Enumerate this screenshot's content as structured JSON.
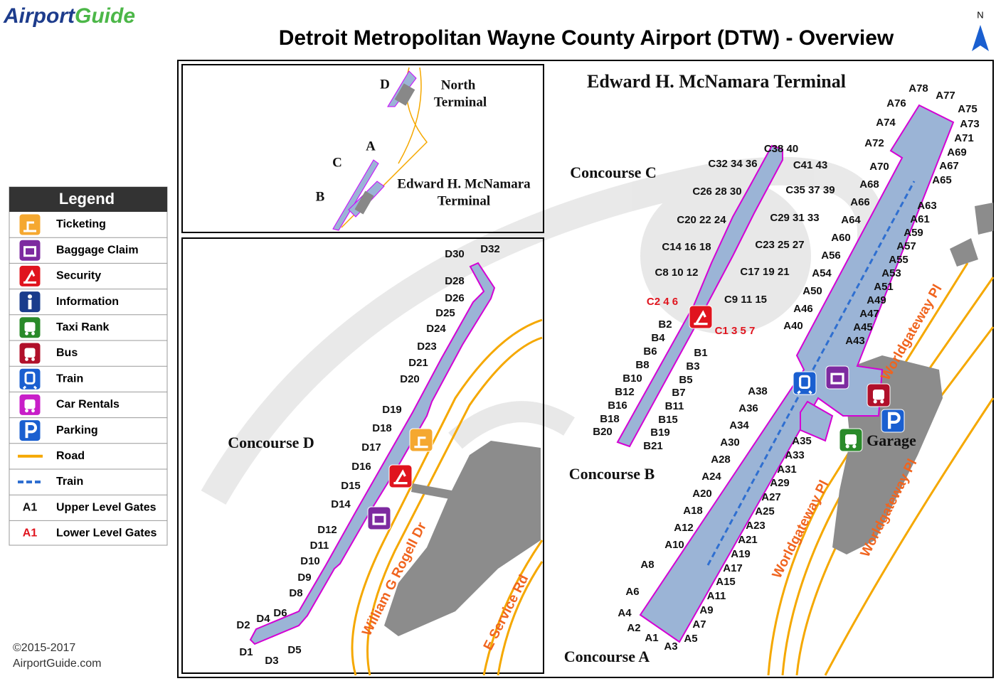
{
  "header": {
    "logo": [
      "Airport",
      "Guide"
    ],
    "title": "Detroit Metropolitan Wayne County Airport (DTW) - Overview",
    "north": "N"
  },
  "legend": {
    "title": "Legend",
    "items": [
      {
        "label": "Ticketing"
      },
      {
        "label": "Baggage Claim"
      },
      {
        "label": "Security"
      },
      {
        "label": "Information"
      },
      {
        "label": "Taxi Rank"
      },
      {
        "label": "Bus"
      },
      {
        "label": "Train"
      },
      {
        "label": "Car Rentals"
      },
      {
        "label": "Parking"
      },
      {
        "label": "Road"
      },
      {
        "label": "Train"
      },
      {
        "sample": "A1",
        "label": "Upper Level Gates"
      },
      {
        "sample": "A1",
        "label": "Lower Level Gates"
      }
    ]
  },
  "overview": {
    "labels": [
      "D",
      "North",
      "Terminal",
      "A",
      "C",
      "B",
      "Edward H. McNamara",
      "Terminal"
    ]
  },
  "map": {
    "terminal_title": "Edward H. McNamara Terminal",
    "concourses": [
      "Concourse D",
      "Concourse C",
      "Concourse B",
      "Concourse A"
    ],
    "gates_d": [
      "D30",
      "D32",
      "D28",
      "D26",
      "D25",
      "D24",
      "D23",
      "D21",
      "D20",
      "D19",
      "D18",
      "D17",
      "D16",
      "D15",
      "D14",
      "D12",
      "D11",
      "D10",
      "D9",
      "D8",
      "D6",
      "D4",
      "D2",
      "D1",
      "D3",
      "D5"
    ],
    "gates_c": [
      "C38 40",
      "C32 34 36",
      "C41 43",
      "C26 28 30",
      "C35 37 39",
      "C20 22 24",
      "C29 31 33",
      "C14 16 18",
      "C23 25 27",
      "C8 10 12",
      "C17 19 21",
      "C9 11 15"
    ],
    "gates_lower": [
      "C2 4 6",
      "C1 3 5 7"
    ],
    "gates_b": [
      "B2",
      "B4",
      "B6",
      "B8",
      "B10",
      "B12",
      "B16",
      "B18",
      "B20",
      "B1",
      "B3",
      "B5",
      "B7",
      "B11",
      "B15",
      "B19",
      "B21"
    ],
    "gates_a": [
      "A38",
      "A36",
      "A34",
      "A30",
      "A28",
      "A24",
      "A20",
      "A18",
      "A12",
      "A10",
      "A8",
      "A6",
      "A4",
      "A2",
      "A1",
      "A3",
      "A5",
      "A7",
      "A9",
      "A11",
      "A15",
      "A17",
      "A19",
      "A21",
      "A23",
      "A25",
      "A27",
      "A29",
      "A31",
      "A33",
      "A35",
      "A40",
      "A46",
      "A50",
      "A54",
      "A56",
      "A60",
      "A64",
      "A66",
      "A68",
      "A70",
      "A72",
      "A74",
      "A76",
      "A78",
      "A77",
      "A75",
      "A73",
      "A71",
      "A69",
      "A67",
      "A65",
      "A63",
      "A61",
      "A59",
      "A57",
      "A55",
      "A53",
      "A51",
      "A49",
      "A47",
      "A45",
      "A43"
    ],
    "roads": [
      "William G Rogell Dr",
      "E Service Rd",
      "Worldgateway Pl",
      "Worldgateway Pl",
      "Worldgateway Pl"
    ],
    "garage": "Garage"
  },
  "footer": {
    "copyright": "©2015-2017",
    "site": "AirportGuide.com"
  }
}
